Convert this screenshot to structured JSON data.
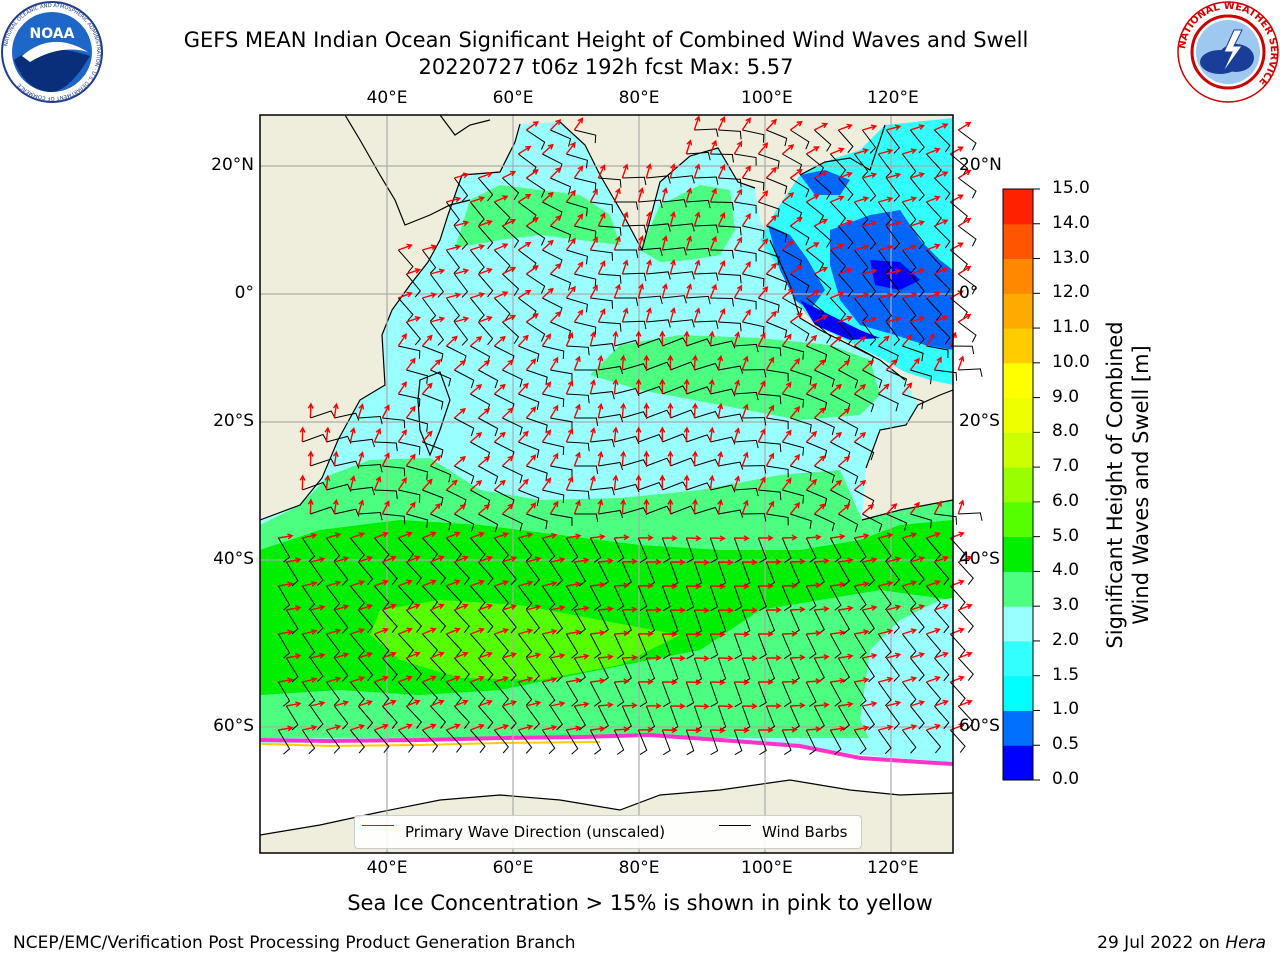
{
  "header": {
    "title_line1": "GEFS MEAN Indian Ocean Significant Height of Combined Wind Waves and Swell",
    "title_line2": "20220727 t06z 192h fcst   Max: 5.57"
  },
  "logos": {
    "noaa": {
      "text": "NOAA",
      "ring_text": "NATIONAL OCEANIC AND ATMOSPHERIC ADMINISTRATION · U.S. DEPARTMENT OF COMMERCE"
    },
    "nws": {
      "ring_text": "NATIONAL WEATHER SERVICE"
    }
  },
  "map": {
    "lon_ticks": [
      "40°E",
      "60°E",
      "80°E",
      "100°E",
      "120°E"
    ],
    "lat_ticks": [
      "20°N",
      "0°",
      "20°S",
      "40°S",
      "60°S"
    ],
    "lon_values": [
      40,
      60,
      80,
      100,
      120
    ],
    "lat_values": [
      20,
      0,
      -20,
      -40,
      -60
    ],
    "extent": {
      "lon": [
        20,
        130
      ],
      "lat": [
        -77,
        28
      ]
    },
    "land_color": "#efeedd",
    "ocean_colors": {
      "light_cyan": "#99ffff",
      "green": "#4dff80",
      "bright_green": "#33ff33",
      "blue": "#0066ff",
      "ice_pink": "#ff33cc"
    }
  },
  "colorbar": {
    "title_line1": "Significant Height of Combined",
    "title_line2": "Wind Waves and Swell [m]",
    "labels": [
      "15.0",
      "14.0",
      "13.0",
      "12.0",
      "11.0",
      "10.0",
      "9.0",
      "8.0",
      "7.0",
      "6.0",
      "5.0",
      "4.0",
      "3.0",
      "2.0",
      "1.5",
      "1.0",
      "0.5",
      "0.0"
    ],
    "colors_bottom_to_top": [
      "#0000ff",
      "#0070ff",
      "#00ffff",
      "#33ffff",
      "#99ffff",
      "#4dff80",
      "#00ee00",
      "#55ff00",
      "#99ff00",
      "#ccff00",
      "#eeff00",
      "#ffff00",
      "#ffcc00",
      "#ffaa00",
      "#ff8800",
      "#ff5500",
      "#ff2200"
    ]
  },
  "legend": {
    "wave_label": "Primary Wave Direction (unscaled)",
    "wind_label": "Wind Barbs",
    "wave_color": "#ff0000",
    "wind_color": "#000000"
  },
  "footer": {
    "sea_ice_note": "Sea Ice Concentration > 15% is shown in pink to yellow",
    "branch": "NCEP/EMC/Verification Post Processing Product Generation Branch",
    "date_prefix": "29 Jul 2022 on ",
    "date_machine": "Hera"
  }
}
